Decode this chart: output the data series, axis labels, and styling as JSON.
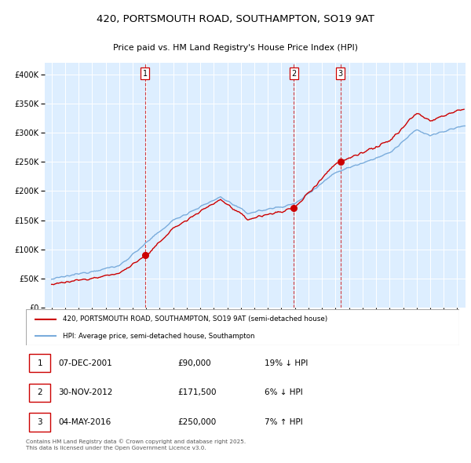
{
  "title_line1": "420, PORTSMOUTH ROAD, SOUTHAMPTON, SO19 9AT",
  "title_line2": "Price paid vs. HM Land Registry's House Price Index (HPI)",
  "legend_label_red": "420, PORTSMOUTH ROAD, SOUTHAMPTON, SO19 9AT (semi-detached house)",
  "legend_label_blue": "HPI: Average price, semi-detached house, Southampton",
  "footer": "Contains HM Land Registry data © Crown copyright and database right 2025.\nThis data is licensed under the Open Government Licence v3.0.",
  "transactions": [
    {
      "num": 1,
      "date": "07-DEC-2001",
      "price": "£90,000",
      "hpi_diff": "19% ↓ HPI",
      "year": 2001.92
    },
    {
      "num": 2,
      "date": "30-NOV-2012",
      "price": "£171,500",
      "hpi_diff": "6% ↓ HPI",
      "year": 2012.91
    },
    {
      "num": 3,
      "date": "04-MAY-2016",
      "price": "£250,000",
      "hpi_diff": "7% ↑ HPI",
      "year": 2016.37
    }
  ],
  "sale_values": [
    90000,
    171500,
    250000
  ],
  "red_color": "#cc0000",
  "blue_color": "#7aacdc",
  "bg_color": "#ddeeff",
  "ylim": [
    0,
    420000
  ],
  "xlim_start": 1994.5,
  "xlim_end": 2025.6,
  "yticks": [
    0,
    50000,
    100000,
    150000,
    200000,
    250000,
    300000,
    350000,
    400000
  ]
}
